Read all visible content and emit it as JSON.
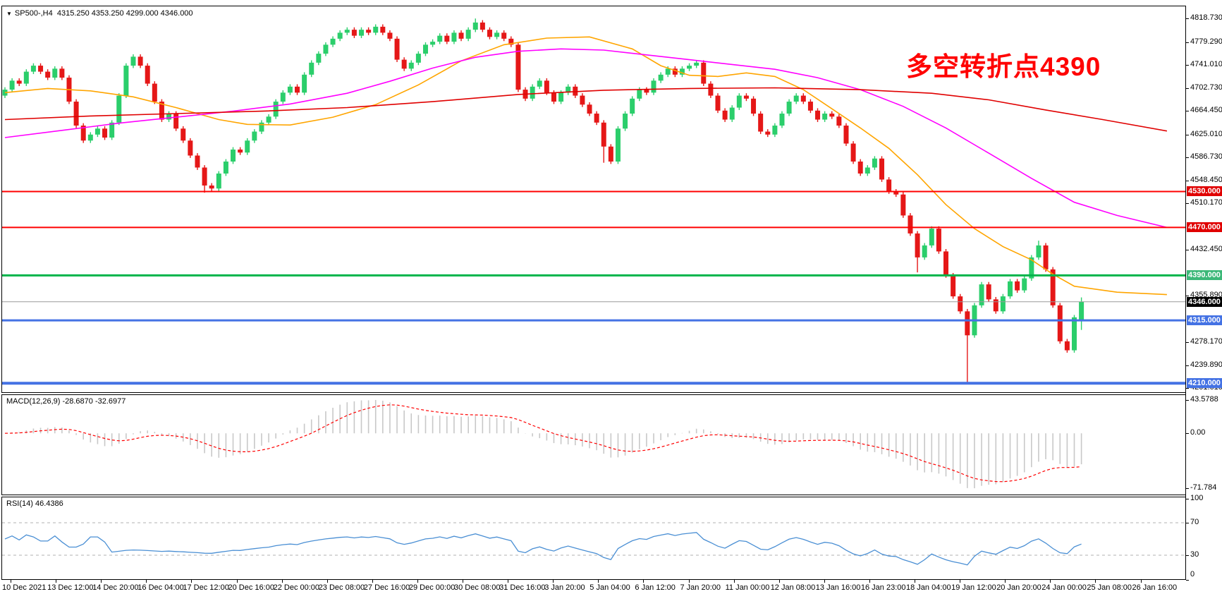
{
  "window": {
    "symbol": "SP500-,H4",
    "ohlc_line": "4315.250 4353.250 4299.000 4346.000"
  },
  "annotation": {
    "text": "多空转折点4390",
    "color": "#ff0000"
  },
  "colors": {
    "bull": "#2bce6b",
    "bear": "#e51717",
    "ma_fast": "#ffa500",
    "ma_mid": "#ff00ff",
    "ma_slow": "#e00000",
    "macd_hist": "#c8c8c8",
    "macd_signal": "#ff0000",
    "rsi_line": "#4a8fd4",
    "rsi_level": "#b0b0b0",
    "level_red": "#ff0000",
    "level_green": "#00b44a",
    "level_blue": "#4472e4",
    "current_price_line": "#999999"
  },
  "price_axis": {
    "ticks": [
      {
        "value": 4818.73,
        "label": "4818.730"
      },
      {
        "value": 4779.29,
        "label": "4779.290"
      },
      {
        "value": 4741.01,
        "label": "4741.010"
      },
      {
        "value": 4702.73,
        "label": "4702.730"
      },
      {
        "value": 4664.45,
        "label": "4664.450"
      },
      {
        "value": 4625.01,
        "label": "4625.010"
      },
      {
        "value": 4586.73,
        "label": "4586.730"
      },
      {
        "value": 4548.45,
        "label": "4548.450"
      },
      {
        "value": 4510.17,
        "label": "4510.170"
      },
      {
        "value": 4432.45,
        "label": "4432.450"
      },
      {
        "value": 4355.89,
        "label": "4355.890"
      },
      {
        "value": 4278.17,
        "label": "4278.170"
      },
      {
        "value": 4239.89,
        "label": "4239.890"
      },
      {
        "value": 4201.61,
        "label": "4201.610"
      }
    ],
    "badges": [
      {
        "value": 4530.0,
        "label": "4530.000",
        "bg": "#e00000"
      },
      {
        "value": 4470.0,
        "label": "4470.000",
        "bg": "#e00000"
      },
      {
        "value": 4390.0,
        "label": "4390.000",
        "bg": "#3cb878"
      },
      {
        "value": 4346.0,
        "label": "4346.000",
        "bg": "#000000"
      },
      {
        "value": 4315.0,
        "label": "4315.000",
        "bg": "#4472e4"
      },
      {
        "value": 4210.0,
        "label": "4210.000",
        "bg": "#4472e4"
      }
    ]
  },
  "macd_panel": {
    "label": "MACD(12,26,9) -28.6870 -32.6977",
    "ticks": [
      {
        "value": 43.5788,
        "label": "43.5788"
      },
      {
        "value": 0,
        "label": "0.00"
      },
      {
        "value": -71.784,
        "label": "-71.784"
      }
    ],
    "range": [
      50,
      -80
    ]
  },
  "rsi_panel": {
    "label": "RSI(14) 46.4386",
    "ticks": [
      {
        "value": 100,
        "label": "100"
      },
      {
        "value": 70,
        "label": "70"
      },
      {
        "value": 30,
        "label": "30"
      },
      {
        "value": 0,
        "label": "0"
      }
    ],
    "dashed_levels": [
      70,
      30
    ]
  },
  "time_axis": {
    "labels": [
      "10 Dec 2021",
      "13 Dec 12:00",
      "14 Dec 20:00",
      "16 Dec 04:00",
      "17 Dec 12:00",
      "20 Dec 16:00",
      "22 Dec 00:00",
      "23 Dec 08:00",
      "27 Dec 16:00",
      "29 Dec 00:00",
      "30 Dec 08:00",
      "31 Dec 16:00",
      "3 Jan 20:00",
      "5 Jan 04:00",
      "6 Jan 12:00",
      "7 Jan 20:00",
      "11 Jan 00:00",
      "12 Jan 08:00",
      "13 Jan 16:00",
      "16 Jan 23:00",
      "18 Jan 04:00",
      "19 Jan 12:00",
      "20 Jan 20:00",
      "24 Jan 00:00",
      "25 Jan 08:00",
      "26 Jan 16:00"
    ]
  },
  "chart_data": {
    "type": "candlestick",
    "title": "SP500-,H4",
    "symbol": "SP500",
    "timeframe": "H4",
    "last_ohlc": {
      "open": 4315.25,
      "high": 4353.25,
      "low": 4299.0,
      "close": 4346.0
    },
    "ylim": [
      4195,
      4839
    ],
    "closes": [
      4700,
      4715,
      4710,
      4730,
      4740,
      4730,
      4720,
      4735,
      4720,
      4680,
      4640,
      4615,
      4625,
      4635,
      4620,
      4645,
      4690,
      4740,
      4755,
      4740,
      4710,
      4680,
      4650,
      4660,
      4635,
      4615,
      4590,
      4570,
      4540,
      4535,
      4560,
      4580,
      4600,
      4595,
      4615,
      4630,
      4645,
      4655,
      4680,
      4695,
      4705,
      4695,
      4725,
      4745,
      4760,
      4775,
      4785,
      4795,
      4800,
      4790,
      4800,
      4795,
      4805,
      4795,
      4785,
      4750,
      4735,
      4745,
      4760,
      4775,
      4780,
      4790,
      4780,
      4795,
      4785,
      4800,
      4812,
      4800,
      4788,
      4795,
      4785,
      4775,
      4700,
      4685,
      4705,
      4715,
      4695,
      4680,
      4695,
      4705,
      4690,
      4675,
      4660,
      4645,
      4605,
      4580,
      4635,
      4660,
      4685,
      4700,
      4695,
      4715,
      4725,
      4735,
      4725,
      4735,
      4740,
      4745,
      4710,
      4690,
      4665,
      4650,
      4670,
      4690,
      4685,
      4660,
      4630,
      4625,
      4640,
      4660,
      4680,
      4690,
      4680,
      4665,
      4650,
      4660,
      4655,
      4640,
      4610,
      4580,
      4560,
      4570,
      4585,
      4550,
      4530,
      4525,
      4490,
      4460,
      4420,
      4440,
      4468,
      4430,
      4390,
      4355,
      4330,
      4290,
      4340,
      4375,
      4350,
      4330,
      4355,
      4380,
      4365,
      4385,
      4420,
      4440,
      4400,
      4340,
      4280,
      4265,
      4320,
      4346
    ],
    "wick_overrides": {
      "28": {
        "low": 4528
      },
      "66": {
        "high": 4818.7
      },
      "84": {
        "low": 4578
      },
      "128": {
        "low": 4395
      },
      "135": {
        "low": 4212
      },
      "145": {
        "high": 4448
      },
      "151": {
        "open": 4315.25,
        "high": 4353.25,
        "low": 4299.0,
        "close": 4346.0
      }
    },
    "levels": [
      {
        "price": 4530,
        "color": "#ff0000",
        "width": 2
      },
      {
        "price": 4470,
        "color": "#ff0000",
        "width": 2
      },
      {
        "price": 4390,
        "color": "#00b44a",
        "width": 3
      },
      {
        "price": 4346,
        "color": "#999999",
        "width": 1
      },
      {
        "price": 4315,
        "color": "#4472e4",
        "width": 3
      },
      {
        "price": 4210,
        "color": "#4472e4",
        "width": 4
      }
    ],
    "moving_averages": [
      {
        "name": "fast-ma-orange",
        "color": "#ffa500",
        "points": [
          [
            0,
            4695
          ],
          [
            6,
            4702
          ],
          [
            12,
            4698
          ],
          [
            18,
            4688
          ],
          [
            24,
            4670
          ],
          [
            30,
            4650
          ],
          [
            34,
            4642
          ],
          [
            40,
            4641
          ],
          [
            46,
            4654
          ],
          [
            52,
            4675
          ],
          [
            58,
            4708
          ],
          [
            64,
            4748
          ],
          [
            70,
            4775
          ],
          [
            76,
            4786
          ],
          [
            82,
            4788
          ],
          [
            88,
            4768
          ],
          [
            92,
            4740
          ],
          [
            96,
            4724
          ],
          [
            100,
            4722
          ],
          [
            104,
            4728
          ],
          [
            108,
            4722
          ],
          [
            112,
            4700
          ],
          [
            116,
            4668
          ],
          [
            120,
            4636
          ],
          [
            124,
            4602
          ],
          [
            128,
            4558
          ],
          [
            132,
            4508
          ],
          [
            136,
            4468
          ],
          [
            140,
            4438
          ],
          [
            144,
            4416
          ],
          [
            147,
            4392
          ],
          [
            150,
            4372
          ],
          [
            156,
            4362
          ],
          [
            163,
            4358
          ]
        ]
      },
      {
        "name": "mid-ma-magenta",
        "color": "#ff00ff",
        "points": [
          [
            0,
            4620
          ],
          [
            8,
            4632
          ],
          [
            16,
            4644
          ],
          [
            24,
            4654
          ],
          [
            32,
            4664
          ],
          [
            40,
            4676
          ],
          [
            48,
            4694
          ],
          [
            54,
            4714
          ],
          [
            60,
            4736
          ],
          [
            66,
            4754
          ],
          [
            72,
            4764
          ],
          [
            78,
            4768
          ],
          [
            84,
            4766
          ],
          [
            90,
            4758
          ],
          [
            96,
            4750
          ],
          [
            102,
            4742
          ],
          [
            108,
            4734
          ],
          [
            114,
            4720
          ],
          [
            120,
            4700
          ],
          [
            126,
            4672
          ],
          [
            132,
            4636
          ],
          [
            138,
            4594
          ],
          [
            144,
            4552
          ],
          [
            150,
            4512
          ],
          [
            156,
            4490
          ],
          [
            163,
            4470
          ]
        ]
      },
      {
        "name": "slow-ma-red",
        "color": "#e00000",
        "points": [
          [
            0,
            4650
          ],
          [
            12,
            4656
          ],
          [
            24,
            4660
          ],
          [
            36,
            4664
          ],
          [
            48,
            4670
          ],
          [
            60,
            4680
          ],
          [
            72,
            4692
          ],
          [
            84,
            4699
          ],
          [
            96,
            4702
          ],
          [
            108,
            4703
          ],
          [
            120,
            4700
          ],
          [
            130,
            4694
          ],
          [
            138,
            4683
          ],
          [
            146,
            4666
          ],
          [
            154,
            4650
          ],
          [
            163,
            4631
          ]
        ]
      }
    ],
    "macd": {
      "fast": 12,
      "slow": 26,
      "signal": 9,
      "value": -28.687,
      "signal_value": -32.6977
    },
    "rsi": {
      "period": 14,
      "value": 46.4386
    }
  }
}
